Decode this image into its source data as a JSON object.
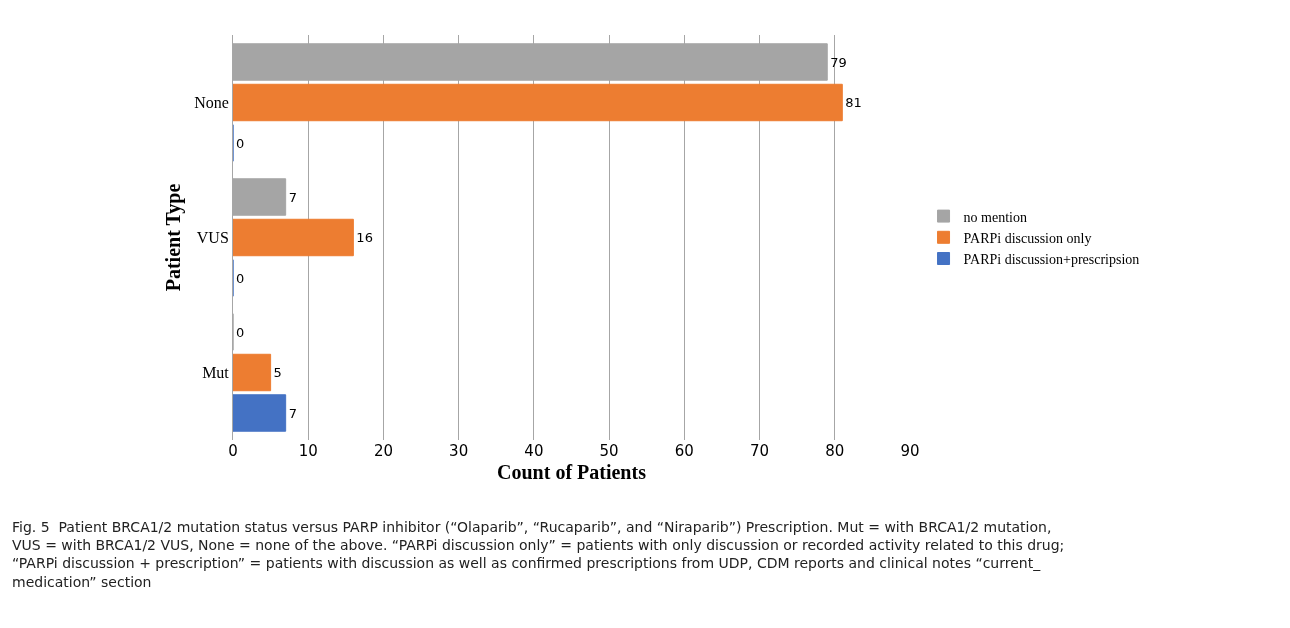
{
  "chart_data": {
    "type": "bar",
    "orientation": "horizontal",
    "xlabel": "Count of Patients",
    "ylabel": "Patient Type",
    "categories": [
      "None",
      "VUS",
      "Mut"
    ],
    "series": [
      {
        "name": "no mention",
        "color": "#a5a5a5",
        "values": [
          79,
          7,
          0
        ]
      },
      {
        "name": "PARPi discussion only",
        "color": "#ed7d31",
        "values": [
          81,
          16,
          5
        ]
      },
      {
        "name": "PARPi discussion+prescripsion",
        "color": "#4472c4",
        "values": [
          0,
          0,
          7
        ]
      }
    ],
    "xlim": [
      0,
      90
    ],
    "xticks": [
      0,
      10,
      20,
      30,
      40,
      50,
      60,
      70,
      80,
      90
    ],
    "grid": "x",
    "legend": "right",
    "data_labels": true,
    "annotations": [
      "Fig. 5  Patient BRCA1/2 mutation status versus PARP inhibitor (“Olaparib”, “Rucaparib”, and “Niraparib”) Prescription. Mut = with BRCA1/2 mutation, VUS = with BRCA1/2 VUS, None = none of the above. “PARPi discussion only” = patients with only discussion or recorded activity related to this drug; “PARPi discussion + prescription” = patients with discussion as well as confirmed prescriptions from UDP, CDM reports and clinical notes “current_ medication” section"
    ]
  }
}
